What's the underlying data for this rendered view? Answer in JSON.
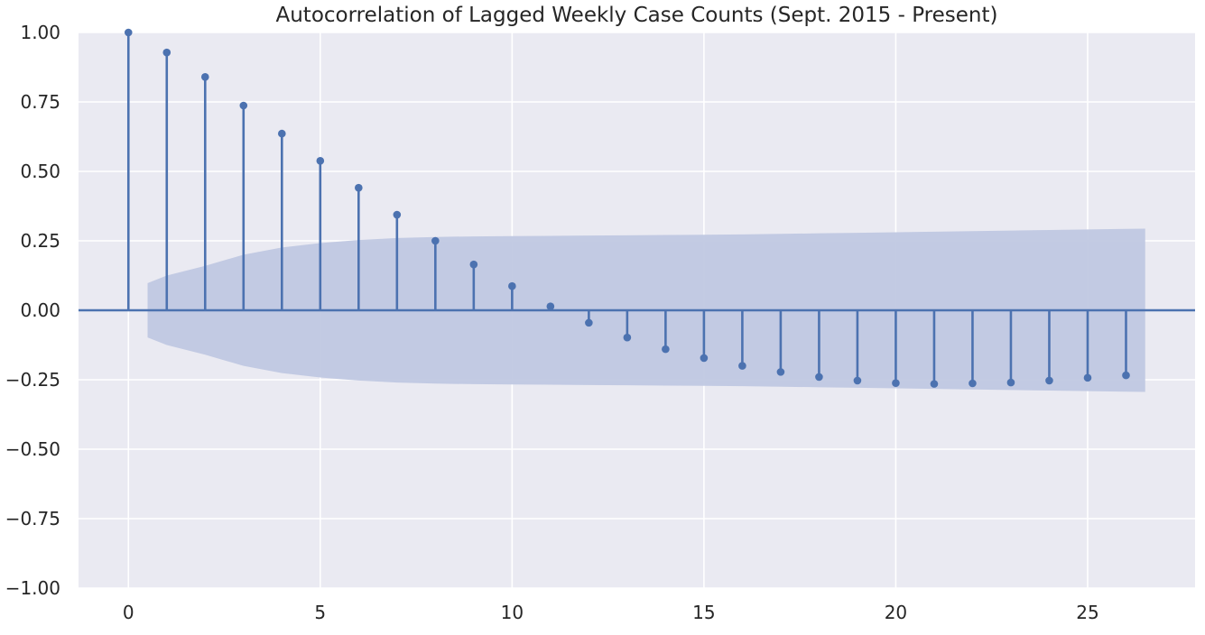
{
  "chart_data": {
    "type": "stem",
    "title": "Autocorrelation of Lagged Weekly Case Counts (Sept. 2015 - Present)",
    "xlabel": "",
    "ylabel": "",
    "xlim": [
      -1.3,
      27.8
    ],
    "ylim": [
      -1.0,
      1.0
    ],
    "x_ticks": [
      0,
      5,
      10,
      15,
      20,
      25
    ],
    "x_tick_labels": [
      "0",
      "5",
      "10",
      "15",
      "20",
      "25"
    ],
    "y_ticks": [
      -1.0,
      -0.75,
      -0.5,
      -0.25,
      0.0,
      0.25,
      0.5,
      0.75,
      1.0
    ],
    "y_tick_labels": [
      "−1.00",
      "−0.75",
      "−0.50",
      "−0.25",
      "0.00",
      "0.25",
      "0.50",
      "0.75",
      "1.00"
    ],
    "grid": true,
    "lags": [
      0,
      1,
      2,
      3,
      4,
      5,
      6,
      7,
      8,
      9,
      10,
      11,
      12,
      13,
      14,
      15,
      16,
      17,
      18,
      19,
      20,
      21,
      22,
      23,
      24,
      25,
      26
    ],
    "acf": [
      1.0,
      0.928,
      0.84,
      0.737,
      0.636,
      0.538,
      0.441,
      0.344,
      0.25,
      0.165,
      0.087,
      0.014,
      -0.045,
      -0.098,
      -0.14,
      -0.172,
      -0.2,
      -0.222,
      -0.24,
      -0.253,
      -0.262,
      -0.265,
      -0.263,
      -0.26,
      -0.253,
      -0.243,
      -0.234
    ],
    "confidence_band": {
      "x": [
        0.5,
        1,
        2,
        3,
        4,
        5,
        6,
        7,
        8,
        9,
        10,
        11,
        12,
        13,
        14,
        15,
        16,
        17,
        18,
        19,
        20,
        21,
        22,
        23,
        24,
        25,
        26,
        26.5
      ],
      "upper": [
        0.098,
        0.125,
        0.16,
        0.2,
        0.226,
        0.242,
        0.253,
        0.26,
        0.264,
        0.266,
        0.267,
        0.268,
        0.269,
        0.27,
        0.271,
        0.272,
        0.273,
        0.275,
        0.277,
        0.279,
        0.281,
        0.283,
        0.285,
        0.287,
        0.289,
        0.291,
        0.293,
        0.294
      ],
      "lower": [
        -0.098,
        -0.125,
        -0.16,
        -0.2,
        -0.226,
        -0.242,
        -0.253,
        -0.26,
        -0.264,
        -0.266,
        -0.267,
        -0.268,
        -0.269,
        -0.27,
        -0.271,
        -0.272,
        -0.273,
        -0.275,
        -0.277,
        -0.279,
        -0.281,
        -0.283,
        -0.285,
        -0.287,
        -0.289,
        -0.291,
        -0.293,
        -0.294
      ]
    },
    "colors": {
      "stem": "#4c72b0",
      "band": "#c0c8e2",
      "plot_background": "#eaeaf2",
      "grid": "#ffffff",
      "text": "#262626"
    }
  }
}
